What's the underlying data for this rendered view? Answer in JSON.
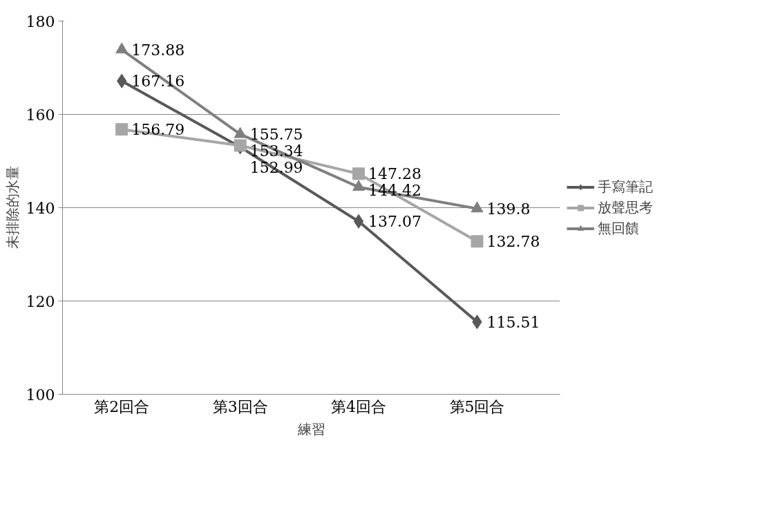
{
  "chart_data": {
    "type": "line",
    "xlabel": "練習",
    "ylabel": "未排除的水量",
    "categories": [
      "第2回合",
      "第3回合",
      "第4回合",
      "第5回合"
    ],
    "series": [
      {
        "name": "手寫筆記",
        "color": "#595959",
        "marker": "diamond",
        "values": [
          167.16,
          152.99,
          137.07,
          115.51
        ]
      },
      {
        "name": "放聲思考",
        "color": "#a6a6a6",
        "marker": "square",
        "values": [
          156.79,
          153.34,
          147.28,
          132.78
        ]
      },
      {
        "name": "無回饋",
        "color": "#7f7f7f",
        "marker": "triangle",
        "values": [
          173.88,
          155.75,
          144.42,
          139.8
        ]
      }
    ],
    "ylim": [
      100,
      180
    ],
    "yticks": [
      100,
      120,
      140,
      160,
      180
    ],
    "grid": "y",
    "legend": "right",
    "data_labels": true
  }
}
